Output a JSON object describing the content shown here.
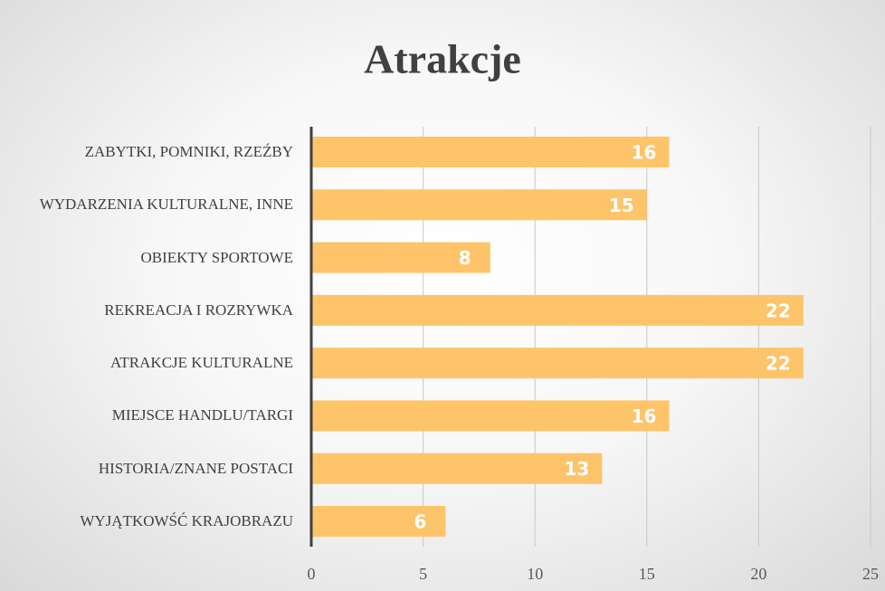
{
  "chart_data": {
    "type": "bar",
    "orientation": "horizontal",
    "title": "Atrakcje",
    "categories": [
      "ZABYTKI, POMNIKI, RZEŹBY",
      "WYDARZENIA KULTURALNE, INNE",
      "OBIEKTY SPORTOWE",
      "REKREACJA I ROZRYWKA",
      "ATRAKCJE KULTURALNE",
      "MIEJSCE HANDLU/TARGI",
      "HISTORIA/ZNANE POSTACI",
      "WYJĄTKOWŚĆ KRAJOBRAZU"
    ],
    "values": [
      16,
      15,
      8,
      22,
      22,
      16,
      13,
      6
    ],
    "color": "#fdc46a",
    "xlim": [
      0,
      25
    ],
    "xticks": [
      0,
      5,
      10,
      15,
      20,
      25
    ],
    "grid": true
  }
}
